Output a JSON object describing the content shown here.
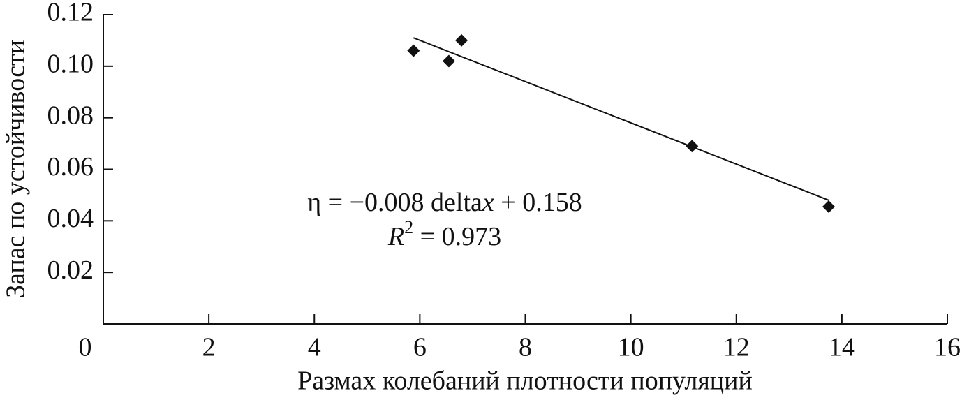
{
  "chart_data": {
    "type": "scatter",
    "x_label": "Размах колебаний плотности популяций",
    "y_label": "Запас по устойчивости",
    "x": [
      5.88,
      6.55,
      6.79,
      11.16,
      13.75
    ],
    "values": [
      0.106,
      0.102,
      0.11,
      0.069,
      0.0455
    ],
    "color": "#111111",
    "trendline": {
      "x": [
        5.88,
        13.75
      ],
      "values": [
        0.111,
        0.048
      ]
    },
    "annotations": [
      "η = −0.008 delta",
      "x",
      " + 0.158",
      "R",
      "2",
      " = 0.973"
    ],
    "xlim": [
      0,
      16
    ],
    "xticks": [
      0,
      2,
      4,
      6,
      8,
      10,
      12,
      14,
      16
    ],
    "ylim": [
      0,
      0.12
    ],
    "yticks": [
      0.02,
      0.04,
      0.06,
      0.08,
      {
        "value": 0.1,
        "label": "0.10"
      },
      0.12
    ]
  }
}
